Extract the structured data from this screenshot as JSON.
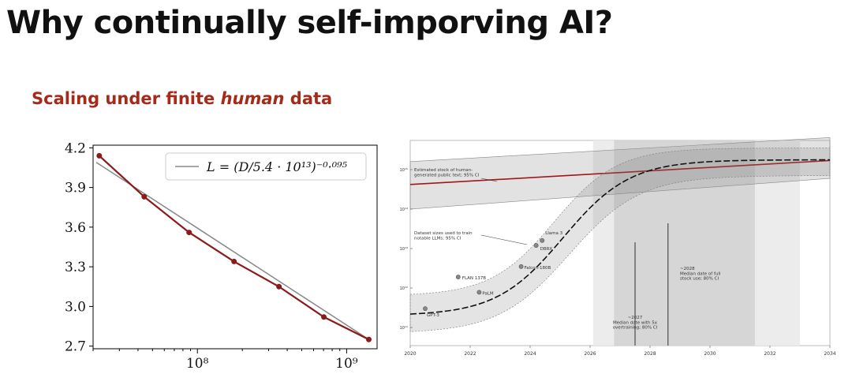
{
  "slide": {
    "title": "Why continually self-imporving AI?",
    "subtitle_pre": "Scaling under finite ",
    "subtitle_em": "human",
    "subtitle_post": " data"
  },
  "colors": {
    "accent": "#a52a1a",
    "line": "#8b1a1a",
    "fit": "#888888"
  },
  "chart_data": [
    {
      "type": "line",
      "xscale": "log",
      "xlim": [
        20000000,
        1600000000
      ],
      "ylim": [
        2.68,
        4.22
      ],
      "yticks": [
        "4.2",
        "3.9",
        "3.6",
        "3.3",
        "3.0",
        "2.7"
      ],
      "ytick_values": [
        4.2,
        3.9,
        3.6,
        3.3,
        3.0,
        2.7
      ],
      "xticks": [
        "10⁸",
        "10⁹"
      ],
      "xtick_values": [
        100000000,
        1000000000
      ],
      "legend": {
        "label": "L = (D/5.4 · 10¹³)⁻⁰·⁰⁹⁵",
        "placement": "top-right"
      },
      "series": [
        {
          "x": [
            22000000,
            44000000,
            88000000,
            176000000,
            352000000,
            704000000,
            1408000000
          ],
          "y": [
            4.14,
            3.83,
            3.56,
            3.34,
            3.15,
            2.92,
            2.75
          ]
        }
      ],
      "fit": {
        "x": [
          21000000,
          1408000000
        ],
        "y": [
          4.09,
          2.75
        ]
      },
      "grid": false
    },
    {
      "type": "line",
      "xlim": [
        2020,
        2034
      ],
      "xticks": [
        "2020",
        "2022",
        "2024",
        "2026",
        "2028",
        "2030",
        "2032",
        "2034"
      ],
      "xtick_values": [
        2020,
        2022,
        2024,
        2026,
        2028,
        2030,
        2032,
        2034
      ],
      "yscale": "log",
      "yticks": [
        "10¹⁵",
        "10¹⁴",
        "10¹³",
        "10¹²",
        "10¹¹"
      ],
      "ytick_values": [
        1000000000000000,
        100000000000000,
        10000000000000,
        1000000000000,
        100000000000
      ],
      "annotations": {
        "stock": "Estimated stock of human-\ngenerated public text; 95% CI",
        "dataset": "Dataset sizes used to train\nnotable LLMs; 95% CI",
        "date_5x": "~2027\nMedian date with 5x\novertraining; 80% CI",
        "date_full": "~2028\nMedian date of full\nstock use; 80% CI"
      },
      "models": [
        {
          "name": "Llama 3",
          "x": 2024.4,
          "y": 16000000000000
        },
        {
          "name": "DBRX",
          "x": 2024.2,
          "y": 12000000000000
        },
        {
          "name": "Falcon-180B",
          "x": 2023.7,
          "y": 3500000000000
        },
        {
          "name": "FLAN 137B",
          "x": 2021.6,
          "y": 1900000000000
        },
        {
          "name": "PaLM",
          "x": 2022.3,
          "y": 780000000000
        },
        {
          "name": "GPT-3",
          "x": 2020.5,
          "y": 300000000000
        }
      ]
    }
  ]
}
